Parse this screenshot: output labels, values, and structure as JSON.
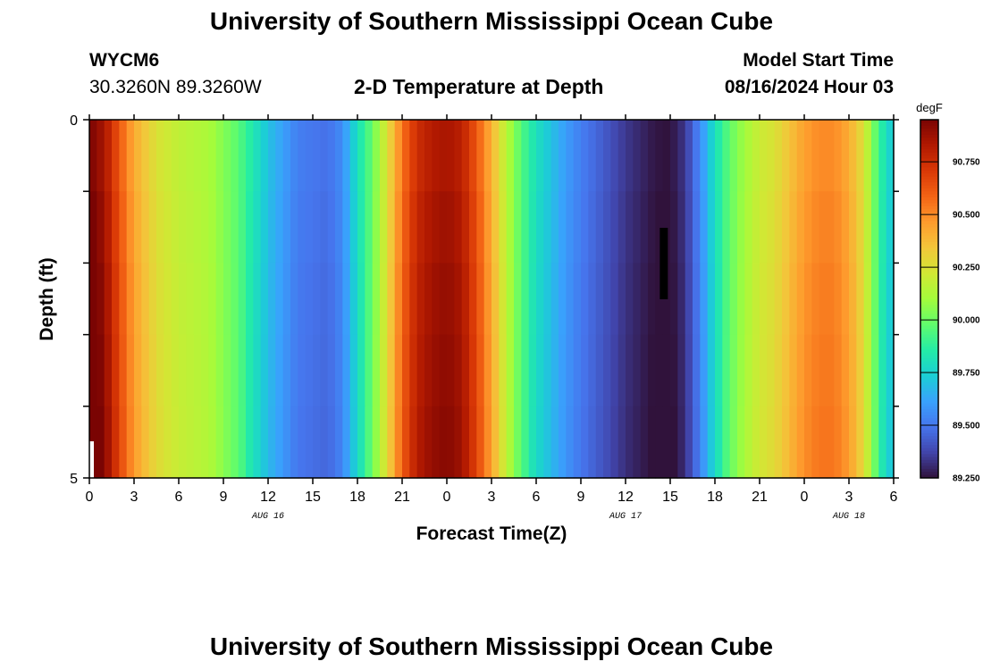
{
  "header": {
    "title": "University of Southern Mississippi Ocean Cube",
    "station": "WYCM6",
    "coordinates": "30.3260N  89.3260W",
    "subtitle": "2-D Temperature at Depth",
    "model_label": "Model Start Time",
    "model_time": "08/16/2024 Hour 03"
  },
  "footer": {
    "title": "University of Southern Mississippi Ocean Cube"
  },
  "chart_data": {
    "type": "heatmap",
    "title": "2-D Temperature at Depth",
    "xlabel": "Forecast Time(Z)",
    "ylabel": "Depth (ft)",
    "x_tick_labels": [
      "0",
      "3",
      "6",
      "9",
      "12",
      "15",
      "18",
      "21",
      "0",
      "3",
      "6",
      "9",
      "12",
      "15",
      "18",
      "21",
      "0",
      "3",
      "6"
    ],
    "x_hours_range": [
      0,
      54
    ],
    "date_labels": [
      {
        "label": "AUG 16",
        "hour": 12
      },
      {
        "label": "AUG 17",
        "hour": 36
      },
      {
        "label": "AUG 18",
        "hour": 51
      }
    ],
    "y_tick_labels": [
      "0",
      "5"
    ],
    "ylim": [
      0,
      5
    ],
    "depth_levels": 5,
    "colorbar": {
      "unit": "degF",
      "min": 89.25,
      "max": 90.95,
      "tick_values": [
        89.25,
        89.5,
        89.75,
        90.0,
        90.25,
        90.5,
        90.75
      ],
      "tick_labels": [
        "89.250",
        "89.500",
        "89.750",
        "90.000",
        "90.250",
        "90.500",
        "90.750"
      ],
      "colors": [
        "#30123b",
        "#4145ab",
        "#4675ed",
        "#39a2fc",
        "#1bcfd4",
        "#24eca6",
        "#61fc6c",
        "#a4fc3b",
        "#d1e834",
        "#f3c63a",
        "#fe9b2d",
        "#f36315",
        "#d93806",
        "#b11901",
        "#7a0403"
      ]
    },
    "temperature_time_profile_degF": [
      [
        0,
        90.95
      ],
      [
        1,
        90.85
      ],
      [
        2,
        90.62
      ],
      [
        3,
        90.42
      ],
      [
        4.5,
        90.25
      ],
      [
        6,
        90.17
      ],
      [
        8,
        90.12
      ],
      [
        10,
        89.96
      ],
      [
        12,
        89.7
      ],
      [
        14,
        89.52
      ],
      [
        16,
        89.48
      ],
      [
        17,
        89.56
      ],
      [
        18,
        89.8
      ],
      [
        19,
        89.99
      ],
      [
        20,
        90.25
      ],
      [
        21,
        90.55
      ],
      [
        22,
        90.75
      ],
      [
        23,
        90.82
      ],
      [
        24,
        90.85
      ],
      [
        25,
        90.8
      ],
      [
        26,
        90.62
      ],
      [
        27,
        90.4
      ],
      [
        28,
        90.15
      ],
      [
        29,
        89.95
      ],
      [
        30,
        89.8
      ],
      [
        31,
        89.7
      ],
      [
        32,
        89.6
      ],
      [
        33,
        89.52
      ],
      [
        34,
        89.46
      ],
      [
        35,
        89.4
      ],
      [
        36,
        89.34
      ],
      [
        37,
        89.3
      ],
      [
        38,
        89.26
      ],
      [
        39,
        89.25
      ],
      [
        40,
        89.34
      ],
      [
        41,
        89.55
      ],
      [
        42,
        89.8
      ],
      [
        43,
        89.98
      ],
      [
        44,
        90.1
      ],
      [
        45,
        90.2
      ],
      [
        46,
        90.25
      ],
      [
        47,
        90.35
      ],
      [
        48,
        90.45
      ],
      [
        49,
        90.5
      ],
      [
        50,
        90.5
      ],
      [
        51,
        90.42
      ],
      [
        52,
        90.25
      ],
      [
        53,
        89.9
      ],
      [
        54,
        89.7
      ]
    ],
    "depth_offset_degF": [
      0.0,
      0.08,
      0.14,
      0.18,
      0.22
    ]
  }
}
